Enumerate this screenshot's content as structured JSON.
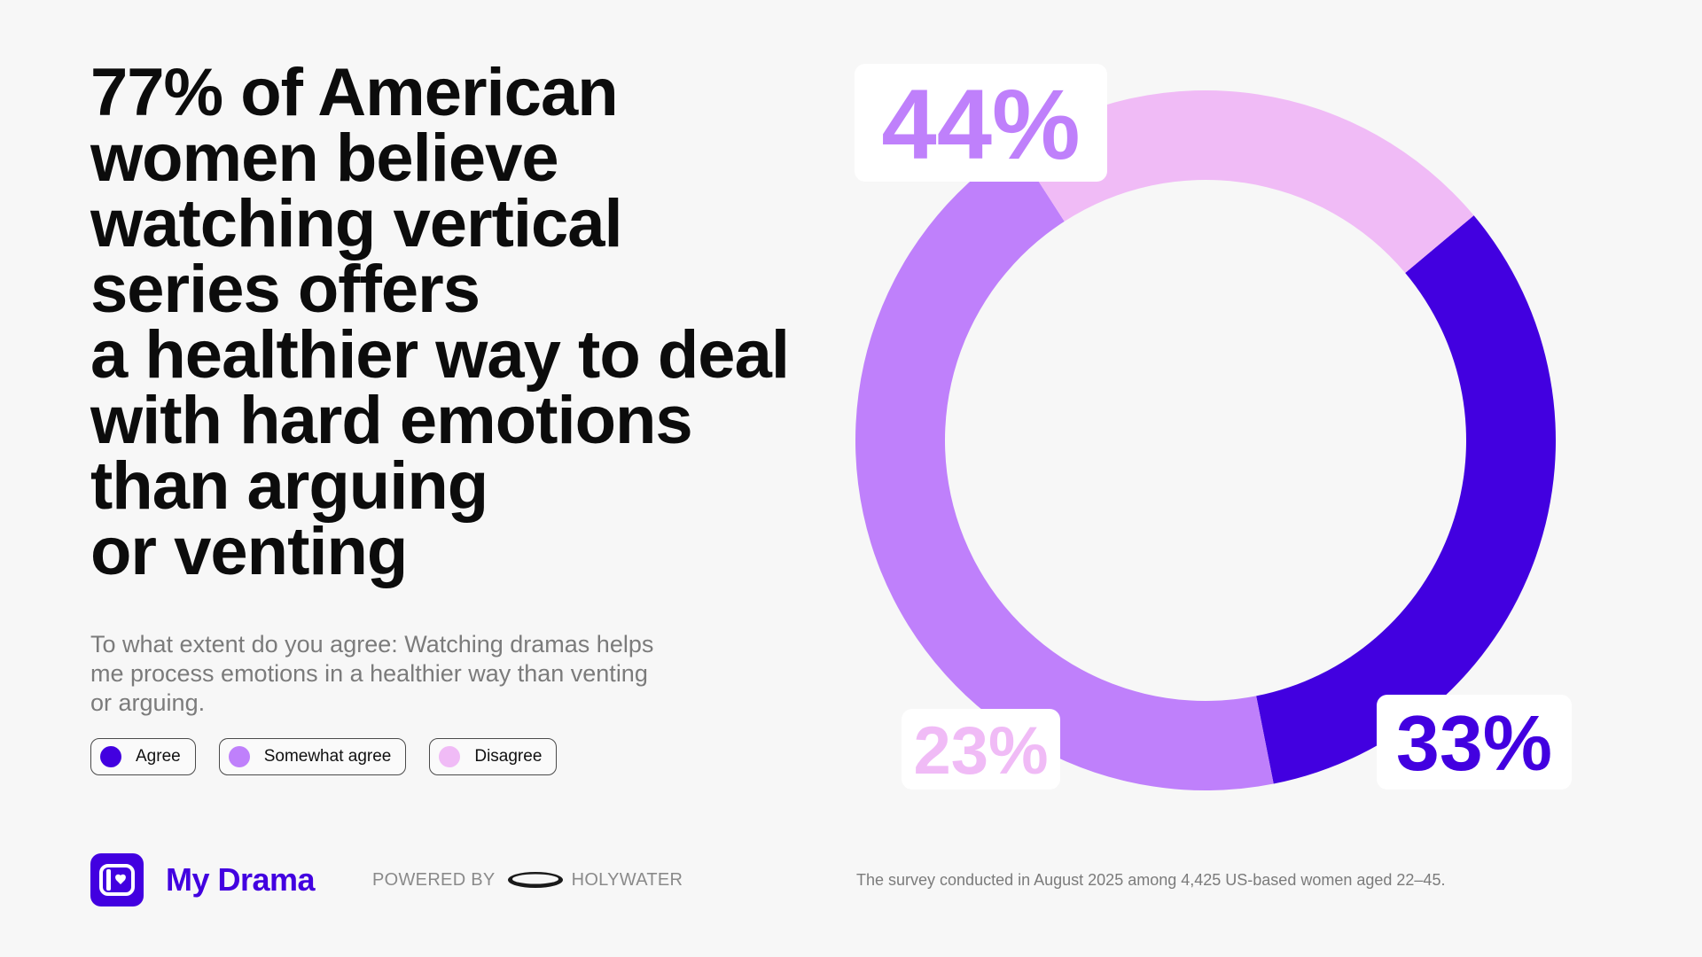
{
  "headline": "77% of American\nwomen believe\nwatching vertical\nseries offers\na healthier way to deal\nwith hard emotions\nthan arguing\nor venting",
  "question": "To what extent do you agree: Watching dramas helps\nme process emotions in a healthier way than venting\nor arguing.",
  "chart_data": {
    "type": "pie",
    "title": "77% of American women believe watching vertical series offers a healthier way to deal with hard emotions than arguing or venting",
    "categories": [
      "Agree",
      "Somewhat agree",
      "Disagree"
    ],
    "values": [
      33,
      44,
      23
    ],
    "value_labels": [
      "33%",
      "44%",
      "23%"
    ],
    "colors": [
      "#4200e0",
      "#bf80fb",
      "#f0bbf6"
    ],
    "label_colors": [
      "#4200e0",
      "#bf80fb",
      "#f0bbf6"
    ],
    "legend_position": "bottom-left",
    "donut": true
  },
  "legend": {
    "items": [
      {
        "label": "Agree"
      },
      {
        "label": "Somewhat agree"
      },
      {
        "label": "Disagree"
      }
    ]
  },
  "footer": {
    "brand": "My Drama",
    "powered_by": "POWERED BY",
    "partner": "HOLYWATER",
    "note": "The survey conducted in August 2025 among 4,425 US-based women aged 22–45."
  },
  "icons": {
    "app": "my-drama-logo-icon",
    "partner": "holywater-logo-icon"
  }
}
